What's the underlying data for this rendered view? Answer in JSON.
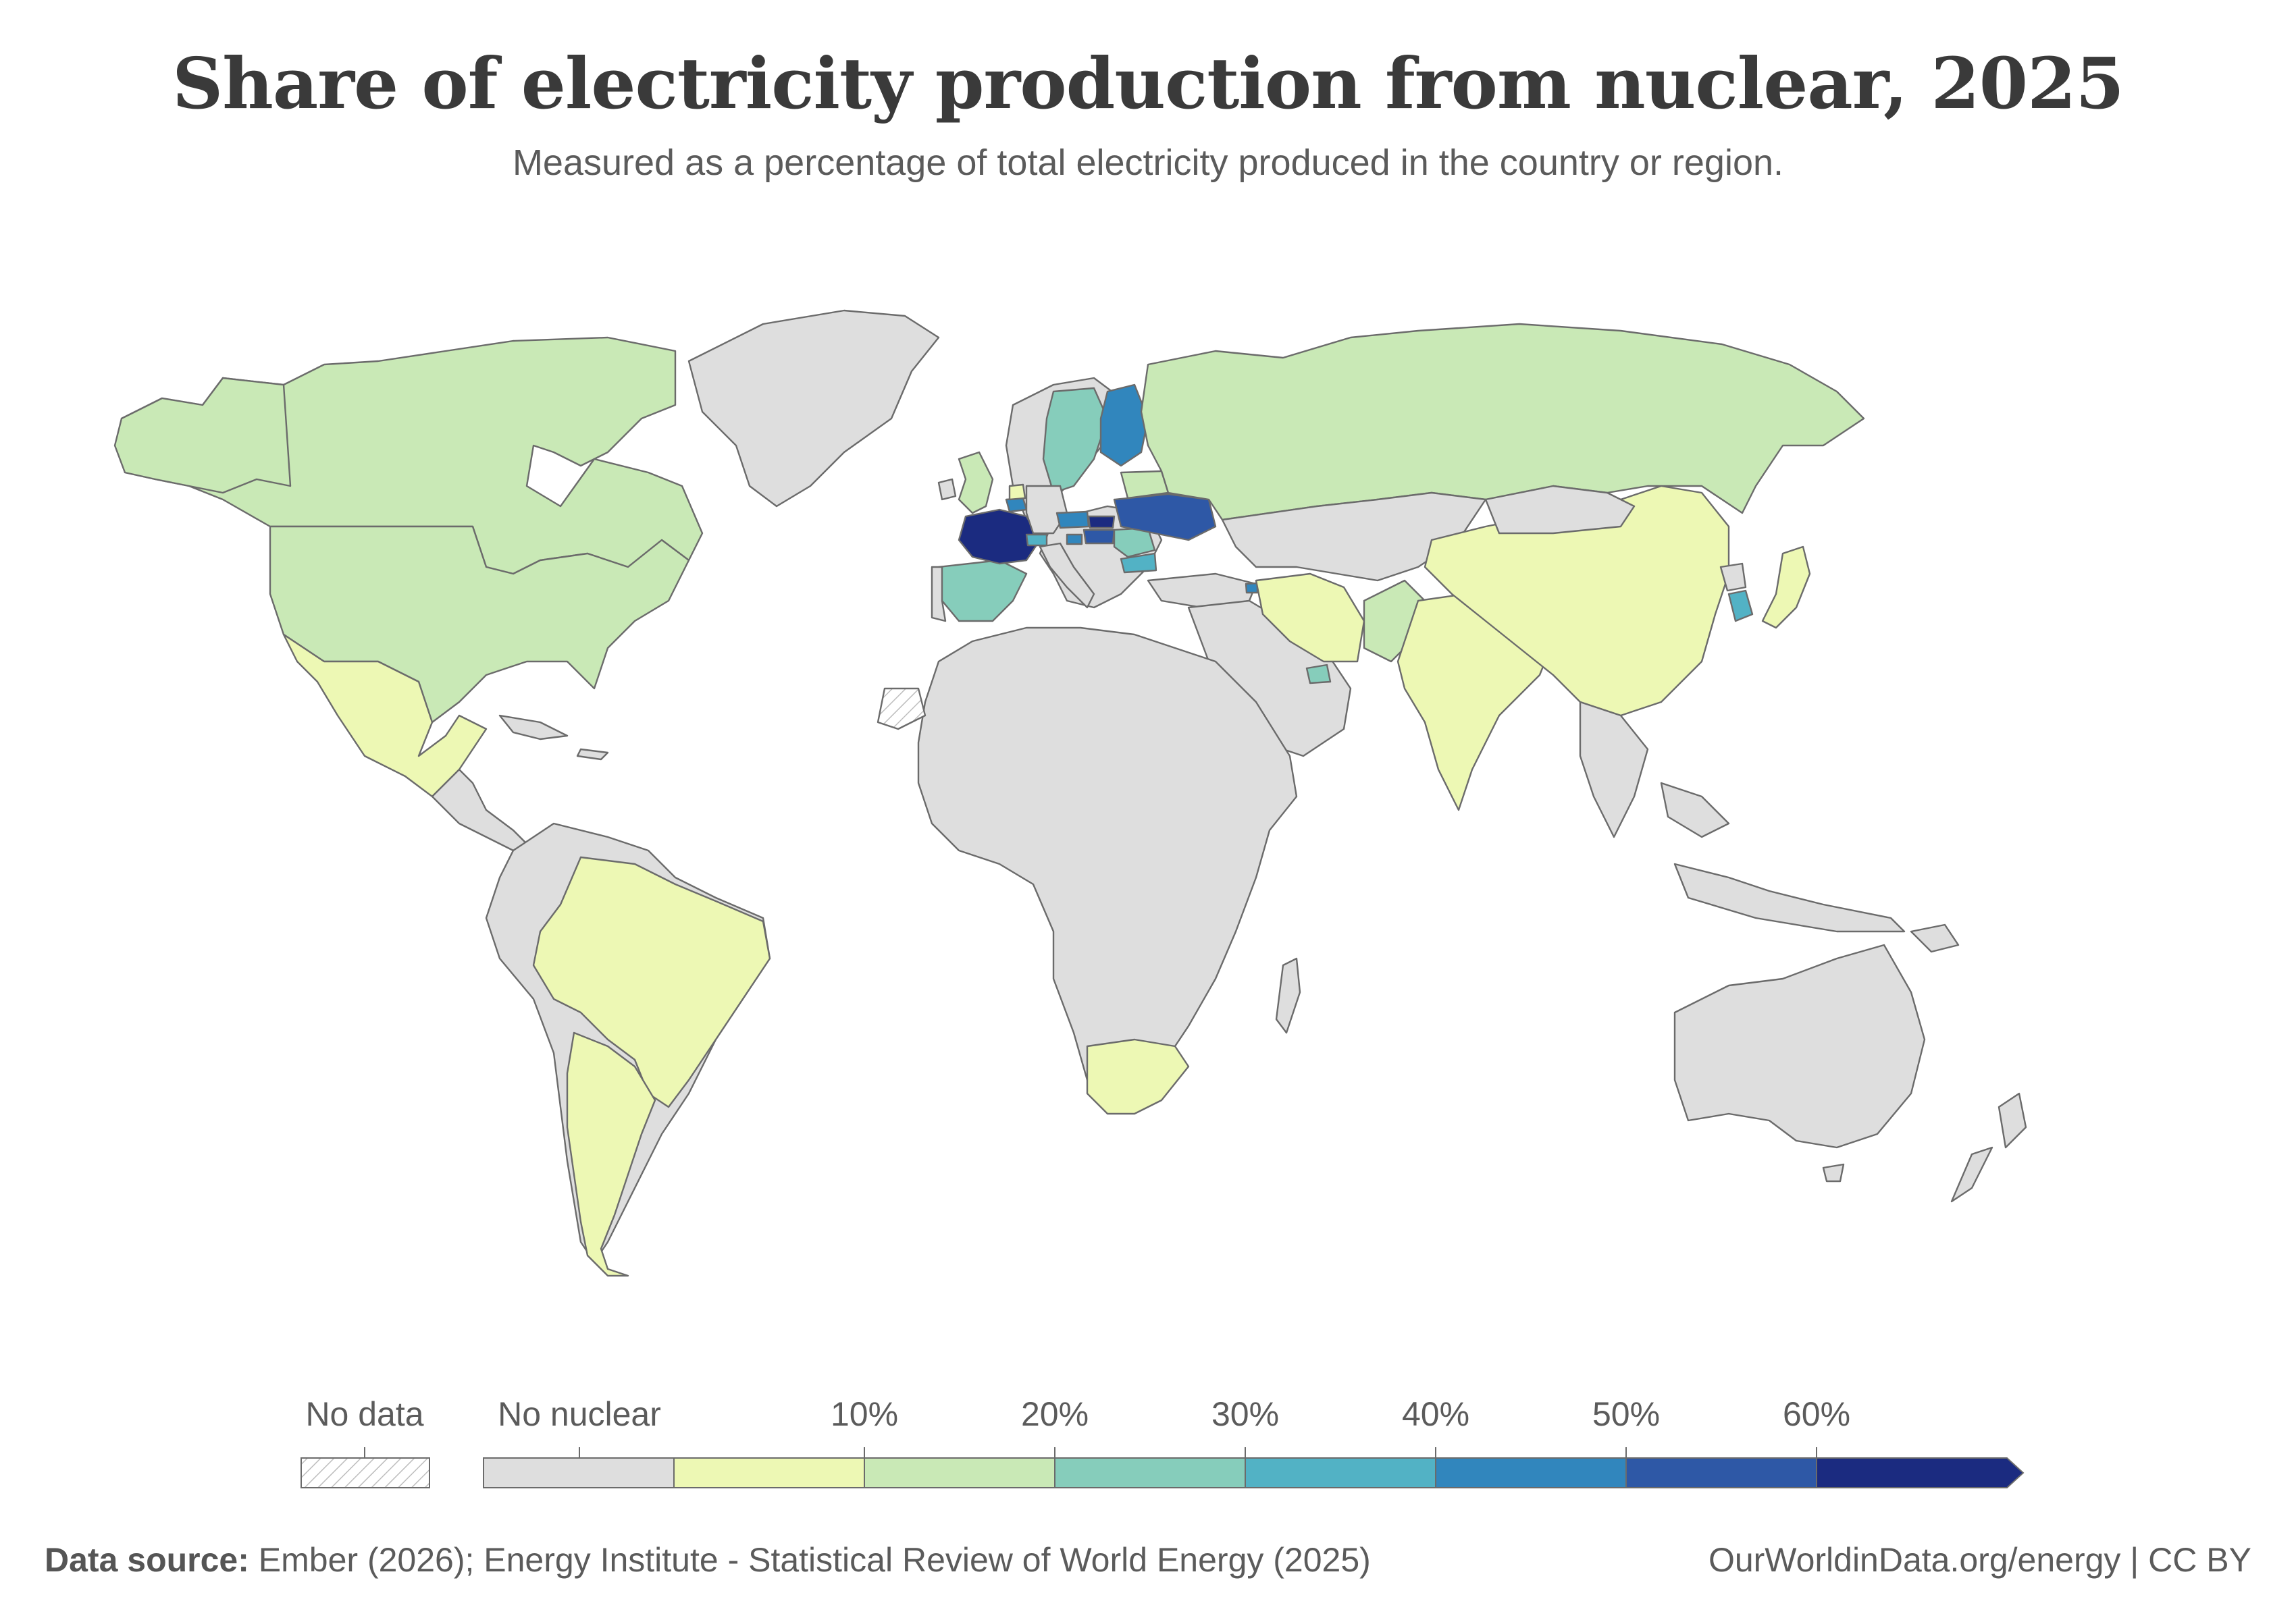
{
  "title": "Share of electricity production from nuclear, 2025",
  "subtitle": "Measured as a percentage of total electricity produced in the country or region.",
  "colors": {
    "no_data": "#ffffff",
    "no_nuclear": "#dedede",
    "bins": [
      "#edf8b4",
      "#c9e9b6",
      "#86cdbb",
      "#52b2c5",
      "#3186bd",
      "#2e58a6",
      "#1b2b80"
    ],
    "border": "#6b6b6b",
    "hatch": "#bdbdbd"
  },
  "legend": {
    "no_data_label": "No data",
    "no_nuclear_label": "No nuclear",
    "ticks": [
      "10%",
      "20%",
      "30%",
      "40%",
      "50%",
      "60%"
    ],
    "open_ended": true
  },
  "countries": [
    {
      "name": "France",
      "bin": 6
    },
    {
      "name": "Slovakia",
      "bin": 6
    },
    {
      "name": "Ukraine",
      "bin": 5
    },
    {
      "name": "Hungary",
      "bin": 5
    },
    {
      "name": "Belgium",
      "bin": 4
    },
    {
      "name": "Finland",
      "bin": 4
    },
    {
      "name": "Czechia",
      "bin": 4
    },
    {
      "name": "Slovenia",
      "bin": 4
    },
    {
      "name": "Armenia",
      "bin": 4
    },
    {
      "name": "Bulgaria",
      "bin": 3
    },
    {
      "name": "Switzerland",
      "bin": 3
    },
    {
      "name": "South Korea",
      "bin": 3
    },
    {
      "name": "Sweden",
      "bin": 2
    },
    {
      "name": "Spain",
      "bin": 2
    },
    {
      "name": "Romania",
      "bin": 2
    },
    {
      "name": "United Arab Emirates",
      "bin": 2
    },
    {
      "name": "United States",
      "bin": 1
    },
    {
      "name": "Canada",
      "bin": 1
    },
    {
      "name": "Russia",
      "bin": 1
    },
    {
      "name": "United Kingdom",
      "bin": 1
    },
    {
      "name": "Pakistan",
      "bin": 1
    },
    {
      "name": "Argentina",
      "bin": 0
    },
    {
      "name": "Brazil",
      "bin": 0
    },
    {
      "name": "Mexico",
      "bin": 0
    },
    {
      "name": "China",
      "bin": 0
    },
    {
      "name": "India",
      "bin": 0
    },
    {
      "name": "Iran",
      "bin": 0
    },
    {
      "name": "Japan",
      "bin": 0
    },
    {
      "name": "South Africa",
      "bin": 0
    },
    {
      "name": "Netherlands",
      "bin": 0
    },
    {
      "name": "Belarus",
      "bin": 1
    }
  ],
  "footer": {
    "source_label": "Data source:",
    "source_text": "Ember (2026); Energy Institute - Statistical Review of World Energy (2025)",
    "credit": "OurWorldinData.org/energy | CC BY"
  }
}
